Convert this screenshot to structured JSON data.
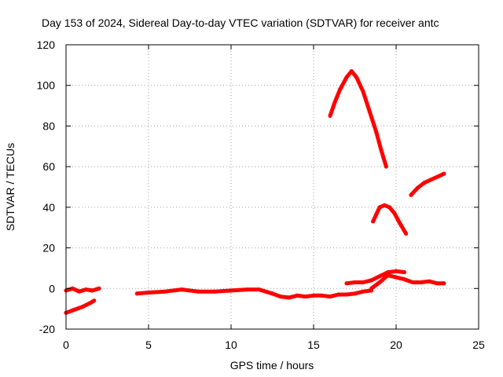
{
  "chart_data": {
    "type": "line",
    "title": "Day 153 of 2024, Sidereal Day-to-day VTEC variation (SDTVAR) for receiver antc",
    "xlabel": "GPS time / hours",
    "ylabel": "SDTVAR / TECUs",
    "xlim": [
      0,
      25
    ],
    "ylim": [
      -20,
      120
    ],
    "x_ticks": [
      0,
      5,
      10,
      15,
      20,
      25
    ],
    "y_ticks": [
      -20,
      0,
      20,
      40,
      60,
      80,
      100,
      120
    ],
    "grid": true,
    "legend": "none",
    "color": "#ff0000",
    "series": [
      {
        "x": [
          0.0,
          0.4,
          0.8,
          1.2,
          1.6,
          2.0
        ],
        "y": [
          -1.0,
          0.0,
          -1.5,
          -0.5,
          -1.0,
          0.0
        ]
      },
      {
        "x": [
          0.0,
          0.5,
          1.0,
          1.5,
          1.7
        ],
        "y": [
          -12.0,
          -10.5,
          -9.0,
          -7.0,
          -6.0
        ]
      },
      {
        "x": [
          4.3,
          5.0,
          6.0,
          7.0,
          8.0,
          9.0,
          10.0,
          11.0,
          11.7,
          12.5,
          13.0,
          13.5,
          14.0,
          14.5,
          15.0,
          15.5,
          16.0,
          16.5,
          17.0,
          17.5,
          18.0,
          18.5
        ],
        "y": [
          -2.5,
          -2.0,
          -1.5,
          -0.5,
          -1.5,
          -1.5,
          -1.0,
          -0.5,
          -0.5,
          -2.5,
          -4.0,
          -4.5,
          -3.5,
          -4.0,
          -3.5,
          -3.5,
          -4.0,
          -3.0,
          -3.0,
          -2.5,
          -1.5,
          -1.0
        ]
      },
      {
        "x": [
          16.0,
          16.3,
          16.6,
          17.0,
          17.3,
          17.6,
          18.0,
          18.4,
          18.8,
          19.1,
          19.4
        ],
        "y": [
          85.0,
          92.0,
          98.0,
          104.0,
          107.0,
          104.0,
          97.0,
          87.0,
          77.0,
          68.0,
          60.0
        ]
      },
      {
        "x": [
          18.6,
          18.8,
          19.0,
          19.3,
          19.6,
          19.9,
          20.2,
          20.6
        ],
        "y": [
          33.0,
          36.5,
          40.0,
          41.0,
          40.0,
          37.0,
          32.5,
          27.0
        ]
      },
      {
        "x": [
          20.9,
          21.3,
          21.7,
          22.1,
          22.5,
          22.9
        ],
        "y": [
          46.0,
          49.5,
          52.0,
          53.5,
          55.0,
          56.5
        ]
      },
      {
        "x": [
          17.0,
          17.5,
          18.0,
          18.5,
          19.0,
          19.5,
          20.0,
          20.5
        ],
        "y": [
          2.5,
          3.0,
          3.0,
          4.0,
          6.0,
          8.0,
          8.5,
          8.0
        ]
      },
      {
        "x": [
          18.5,
          19.0,
          19.5,
          20.0,
          20.5,
          21.0,
          21.5,
          22.0,
          22.5,
          22.9
        ],
        "y": [
          0.0,
          3.0,
          6.5,
          5.5,
          4.5,
          3.0,
          3.0,
          3.5,
          2.5,
          2.5
        ]
      }
    ]
  }
}
